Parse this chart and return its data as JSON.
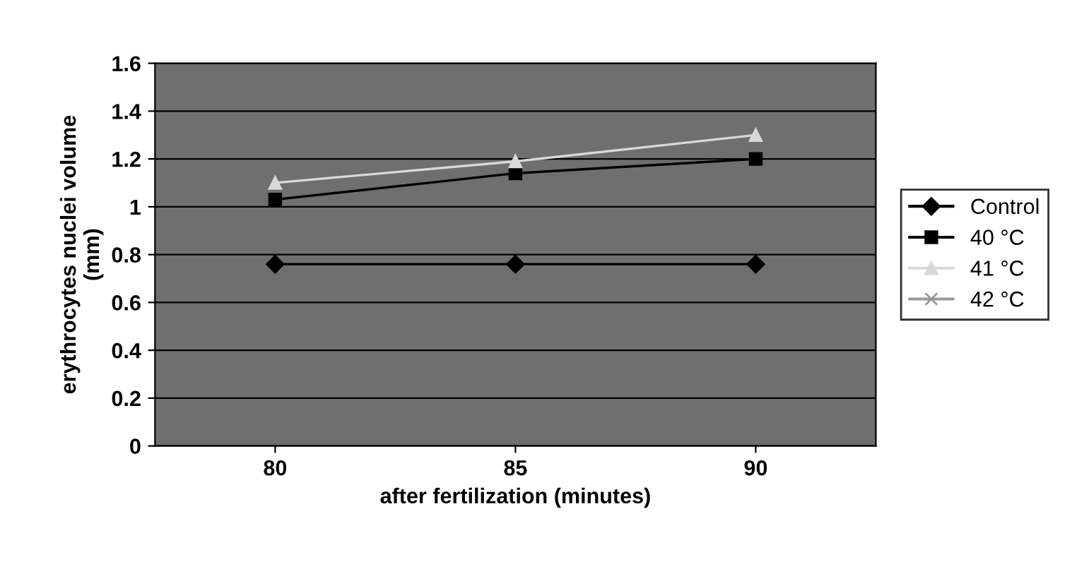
{
  "chart_data": {
    "type": "line",
    "xlabel": "after fertilization (minutes)",
    "ylabel": "erythrocytes nuclei volume\n(mm)",
    "categories": [
      "80",
      "85",
      "90"
    ],
    "series": [
      {
        "name": "Control",
        "color": "#000000",
        "marker": "diamond",
        "values": [
          0.76,
          0.76,
          0.76
        ]
      },
      {
        "name": "40 °C",
        "color": "#000000",
        "marker": "square",
        "values": [
          1.03,
          1.14,
          1.2
        ]
      },
      {
        "name": "41 °C",
        "color": "#d8d8d8",
        "marker": "triangle",
        "values": [
          1.1,
          1.19,
          1.3
        ]
      },
      {
        "name": "42 °C",
        "color": "#9a9a9a",
        "marker": "cross",
        "values": [
          null,
          null,
          null
        ]
      }
    ],
    "ylim": [
      0,
      1.6
    ],
    "yticks": [
      0,
      0.2,
      0.4,
      0.6,
      0.8,
      1,
      1.2,
      1.4,
      1.6
    ],
    "grid": "y",
    "legend": "right",
    "line_style": "solid"
  }
}
